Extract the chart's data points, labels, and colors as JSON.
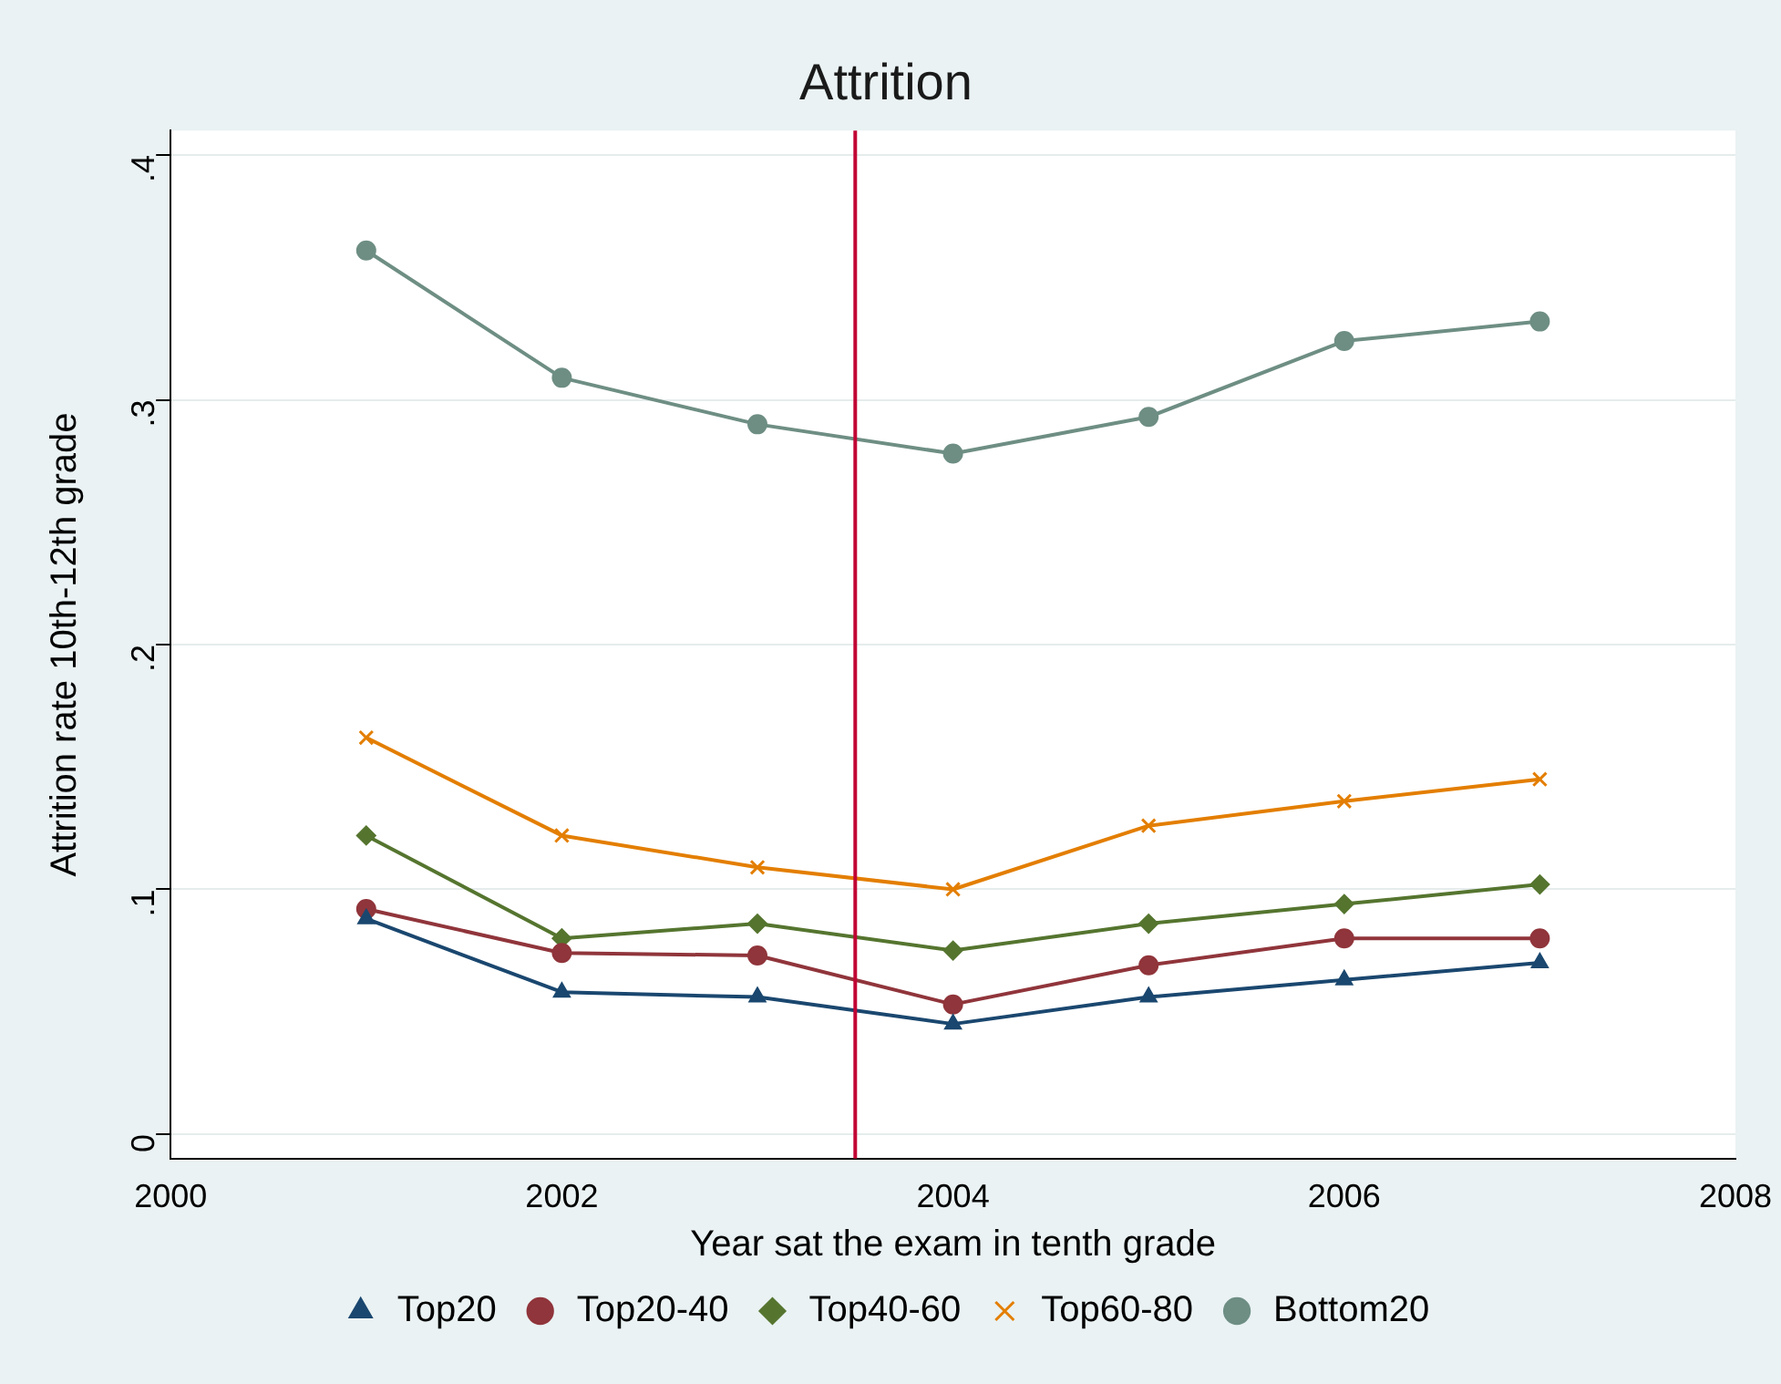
{
  "chart_data": {
    "type": "line",
    "title": "Attrition",
    "xlabel": "Year sat the exam in tenth grade",
    "ylabel": "Attrition rate 10th-12th grade",
    "x": [
      2001,
      2002,
      2003,
      2004,
      2005,
      2006,
      2007
    ],
    "xlim": [
      2000,
      2008
    ],
    "xticks": [
      2000,
      2002,
      2004,
      2006,
      2008
    ],
    "ylim": [
      -0.01,
      0.41
    ],
    "yticks": [
      {
        "value": 0,
        "label": "0"
      },
      {
        "value": 0.1,
        "label": ".1"
      },
      {
        "value": 0.2,
        "label": ".2"
      },
      {
        "value": 0.3,
        "label": ".3"
      },
      {
        "value": 0.4,
        "label": ".4"
      }
    ],
    "grid": "y",
    "legend": "bottom",
    "ref_lines": [
      {
        "axis": "x",
        "value": 2003.5,
        "color": "#c10534"
      }
    ],
    "series": [
      {
        "name": "Top20",
        "color": "#1a476f",
        "marker": "triangle",
        "values": [
          0.088,
          0.058,
          0.056,
          0.045,
          0.056,
          0.063,
          0.07
        ]
      },
      {
        "name": "Top20-40",
        "color": "#90353b",
        "marker": "circle",
        "values": [
          0.092,
          0.074,
          0.073,
          0.053,
          0.069,
          0.08,
          0.08
        ]
      },
      {
        "name": "Top40-60",
        "color": "#55752f",
        "marker": "diamond",
        "values": [
          0.122,
          0.08,
          0.086,
          0.075,
          0.086,
          0.094,
          0.102
        ]
      },
      {
        "name": "Top60-80",
        "color": "#e37e00",
        "marker": "cross",
        "values": [
          0.162,
          0.122,
          0.109,
          0.1,
          0.126,
          0.136,
          0.145
        ]
      },
      {
        "name": "Bottom20",
        "color": "#6e8e84",
        "marker": "circle",
        "values": [
          0.361,
          0.309,
          0.29,
          0.278,
          0.293,
          0.324,
          0.332
        ]
      }
    ]
  }
}
